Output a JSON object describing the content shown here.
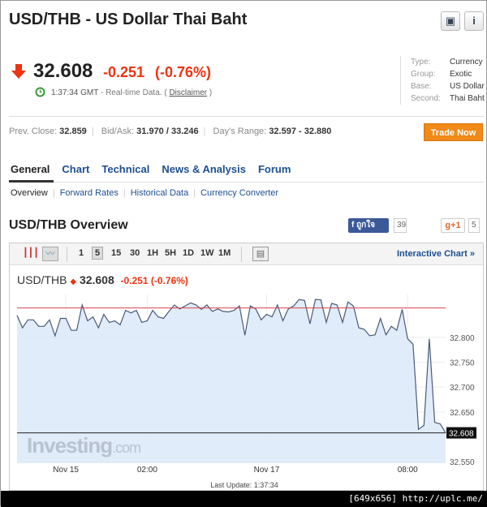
{
  "header": {
    "title": "USD/THB - US Dollar Thai Baht",
    "buttons": [
      {
        "icon": "add-to-folder-icon"
      },
      {
        "icon": "info-icon",
        "label": "i"
      }
    ]
  },
  "quote": {
    "price": "32.608",
    "change": "-0.251",
    "change_pct": "(-0.76%)",
    "direction": "down",
    "time": "1:37:34 GMT",
    "realtime": "- Real-time Data. (",
    "disclaimer": "Disclaimer",
    "close_paren": ")"
  },
  "info": [
    {
      "k": "Type:",
      "v": "Currency"
    },
    {
      "k": "Group:",
      "v": "Exotic"
    },
    {
      "k": "Base:",
      "v": "US Dollar"
    },
    {
      "k": "Second:",
      "v": "Thai Baht"
    }
  ],
  "stats": {
    "prev_close_label": "Prev. Close:",
    "prev_close": "32.859",
    "bidask_label": "Bid/Ask:",
    "bidask": "31.970 / 33.246",
    "range_label": "Day's Range:",
    "range": "32.597 - 32.880"
  },
  "trade_now": "Trade Now",
  "tabs": [
    "General",
    "Chart",
    "Technical",
    "News & Analysis",
    "Forum"
  ],
  "subtabs": [
    "Overview",
    "Forward Rates",
    "Historical Data",
    "Currency Converter"
  ],
  "overview": {
    "title": "USD/THB Overview",
    "fb_label": "ถูกใจ",
    "fb_count": "39",
    "gplus_label": "g+1",
    "gplus_count": "5"
  },
  "toolbar": {
    "intervals": [
      "1",
      "5",
      "15",
      "30",
      "1H",
      "5H",
      "1D",
      "1W",
      "1M"
    ],
    "selected": "5",
    "interactive": "Interactive Chart »"
  },
  "chart_quote": {
    "symbol": "USD/THB",
    "price": "32.608",
    "change": "-0.251 (-0.76%)"
  },
  "last_update": "Last Update: 1:37:34",
  "watermark": "Investing.com",
  "footer": "[649x656] http://uplc.me/",
  "colors": {
    "accent": "#1d4f91",
    "down": "#ee3311",
    "trade": "#f08a18",
    "area": "#dbe9f8",
    "line": "#4a5a7a",
    "prev_close_line": "#d9434b"
  },
  "chart_data": {
    "type": "area",
    "ylim": [
      32.547,
      32.886
    ],
    "y_ticks": [
      "32.800",
      "32.750",
      "32.700",
      "32.650",
      "32.550"
    ],
    "x_ticks": [
      {
        "label": "Nov 15",
        "index": 9
      },
      {
        "label": "02:00",
        "index": 24
      },
      {
        "label": "Nov 17",
        "index": 46
      },
      {
        "label": "08:00",
        "index": 72
      }
    ],
    "reference_line": 32.859,
    "last_value_label": "32.608",
    "values": [
      32.844,
      32.819,
      32.835,
      32.835,
      32.822,
      32.822,
      32.835,
      32.803,
      32.838,
      32.838,
      32.814,
      32.814,
      32.865,
      32.833,
      32.841,
      32.819,
      32.846,
      32.83,
      32.833,
      32.825,
      32.854,
      32.849,
      32.854,
      32.83,
      32.833,
      32.854,
      32.841,
      32.838,
      32.852,
      32.865,
      32.857,
      32.863,
      32.869,
      32.865,
      32.856,
      32.865,
      32.852,
      32.857,
      32.852,
      32.851,
      32.854,
      32.863,
      32.804,
      32.863,
      32.857,
      32.835,
      32.846,
      32.841,
      32.865,
      32.833,
      32.857,
      32.863,
      32.876,
      32.874,
      32.827,
      32.876,
      32.875,
      32.83,
      32.868,
      32.865,
      32.83,
      32.871,
      32.863,
      32.819,
      32.816,
      32.803,
      32.805,
      32.838,
      32.805,
      32.822,
      32.814,
      32.856,
      32.797,
      32.786,
      32.615,
      32.623,
      32.797,
      32.629,
      32.626,
      32.608
    ]
  }
}
